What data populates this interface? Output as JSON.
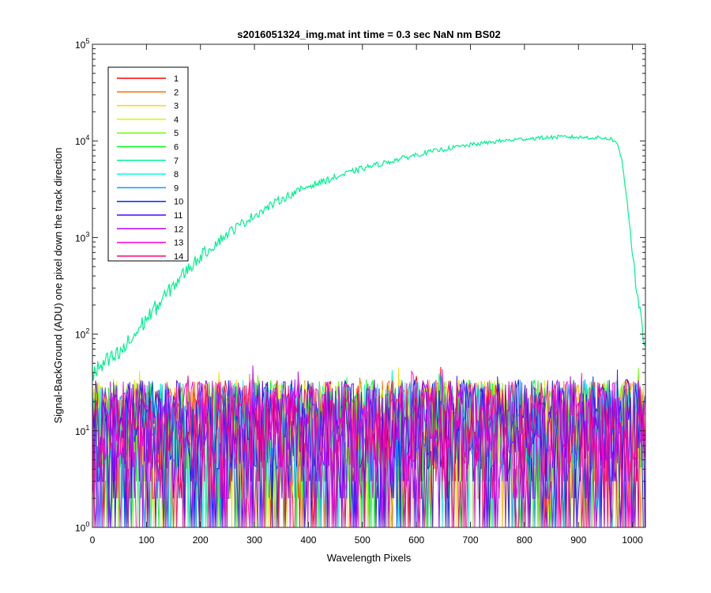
{
  "chart_data": {
    "type": "line",
    "title": "s2016051324_img.mat int time = 0.3 sec  NaN nm BS02",
    "xlabel": "Wavelength Pixels",
    "ylabel": "Signal-BackGround (ADU) one pixel down the track direction",
    "xlim": [
      0,
      1024
    ],
    "ylim": [
      1,
      100000
    ],
    "yscale": "log",
    "grid": false,
    "legend_location": "top-left",
    "x_ticks": [
      "0",
      "100",
      "200",
      "300",
      "400",
      "500",
      "600",
      "700",
      "800",
      "900",
      "1000"
    ],
    "y_ticks": [
      {
        "base": "10",
        "exp": "0"
      },
      {
        "base": "10",
        "exp": "1"
      },
      {
        "base": "10",
        "exp": "2"
      },
      {
        "base": "10",
        "exp": "3"
      },
      {
        "base": "10",
        "exp": "4"
      },
      {
        "base": "10",
        "exp": "5"
      }
    ],
    "series": [
      {
        "name": "1",
        "color": "#ff0000",
        "kind": "noise"
      },
      {
        "name": "2",
        "color": "#ff6e00",
        "kind": "noise"
      },
      {
        "name": "3",
        "color": "#ffd700",
        "kind": "noise"
      },
      {
        "name": "4",
        "color": "#c8ff00",
        "kind": "noise"
      },
      {
        "name": "5",
        "color": "#6eff00",
        "kind": "noise"
      },
      {
        "name": "6",
        "color": "#00ff1e",
        "kind": "noise"
      },
      {
        "name": "7",
        "color": "#00f090",
        "kind": "signal",
        "x": [
          0,
          25,
          50,
          75,
          100,
          125,
          150,
          175,
          200,
          250,
          300,
          350,
          400,
          450,
          500,
          550,
          600,
          650,
          700,
          750,
          800,
          850,
          880,
          900,
          930,
          950,
          960,
          970,
          980,
          990,
          1000,
          1010,
          1020,
          1024
        ],
        "y": [
          38,
          50,
          62,
          92,
          145,
          210,
          320,
          460,
          640,
          1100,
          1700,
          2500,
          3400,
          4200,
          5200,
          6100,
          7200,
          8200,
          9100,
          9900,
          10500,
          10900,
          11000,
          10900,
          10800,
          10700,
          10500,
          9800,
          6500,
          2500,
          700,
          220,
          95,
          75
        ]
      },
      {
        "name": "8",
        "color": "#00ffe0",
        "kind": "noise"
      },
      {
        "name": "9",
        "color": "#00a0ff",
        "kind": "noise"
      },
      {
        "name": "10",
        "color": "#0028ff",
        "kind": "noise"
      },
      {
        "name": "11",
        "color": "#5000ff",
        "kind": "noise"
      },
      {
        "name": "12",
        "color": "#b400ff",
        "kind": "noise"
      },
      {
        "name": "13",
        "color": "#ff00e0",
        "kind": "noise"
      },
      {
        "name": "14",
        "color": "#ff0078",
        "kind": "noise"
      }
    ],
    "noise_range": [
      1,
      50
    ]
  }
}
